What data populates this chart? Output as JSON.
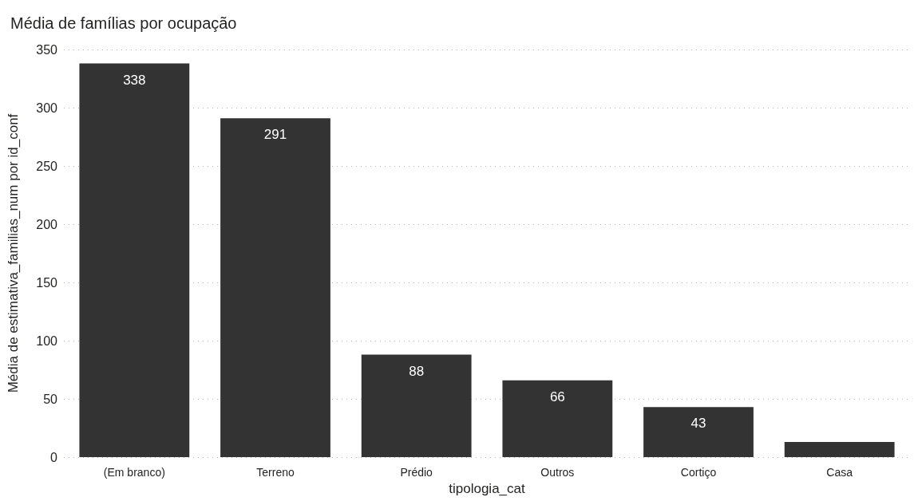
{
  "chart_data": {
    "type": "bar",
    "title": "Média de famílias por ocupação",
    "xlabel": "tipologia_cat",
    "ylabel": "Média de estimativa_familias_num por id_conf",
    "categories": [
      "(Em branco)",
      "Terreno",
      "Prédio",
      "Outros",
      "Cortiço",
      "Casa"
    ],
    "values": [
      338,
      291,
      88,
      66,
      43,
      13
    ],
    "value_labels": [
      "338",
      "291",
      "88",
      "66",
      "43",
      null
    ],
    "color": "#333333",
    "ylim": [
      0,
      350
    ],
    "yticks": [
      0,
      50,
      100,
      150,
      200,
      250,
      300,
      350
    ],
    "grid": "y"
  }
}
